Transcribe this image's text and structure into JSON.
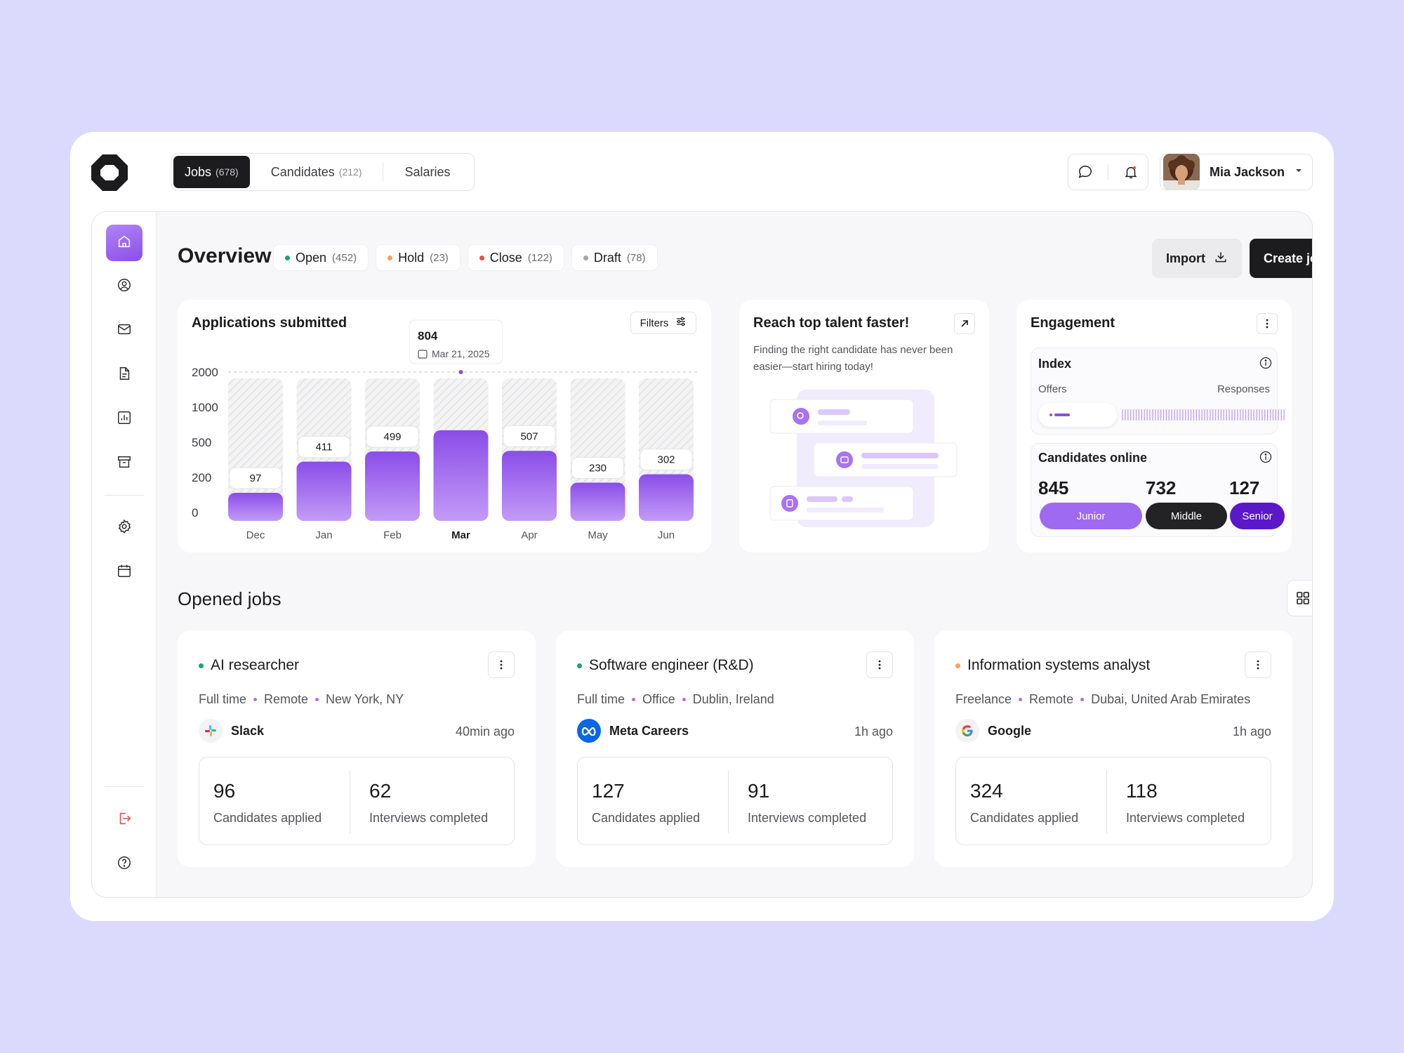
{
  "header": {
    "tabs": [
      {
        "label": "Jobs",
        "count": "(678)"
      },
      {
        "label": "Candidates",
        "count": "(212)"
      },
      {
        "label": "Salaries",
        "count": ""
      }
    ],
    "user_name": "Mia Jackson"
  },
  "overview": {
    "title": "Overview",
    "statuses": [
      {
        "label": "Open",
        "count": "(452)",
        "color": "#1aa567"
      },
      {
        "label": "Hold",
        "count": "(23)",
        "color": "#f5a25d"
      },
      {
        "label": "Close",
        "count": "(122)",
        "color": "#ef4b45"
      },
      {
        "label": "Draft",
        "count": "(78)",
        "color": "#a4a4aa"
      }
    ],
    "import_label": "Import",
    "create_label": "Create job"
  },
  "chart_data": {
    "type": "bar",
    "title": "Applications submitted",
    "filters_label": "Filters",
    "categories": [
      "Dec",
      "Jan",
      "Feb",
      "Mar",
      "Apr",
      "May",
      "Jun"
    ],
    "values": [
      97,
      411,
      499,
      804,
      507,
      230,
      302
    ],
    "y_ticks": [
      "2000",
      "1000",
      "500",
      "200",
      "0"
    ],
    "highlight_index": 3,
    "tooltip": {
      "value": "804",
      "date": "Mar 21, 2025"
    },
    "colors": {
      "bar_top": "#8a4de8",
      "bar_bottom": "#c39bf7"
    }
  },
  "reach": {
    "title": "Reach top talent faster!",
    "description": "Finding the right candidate has never been easier—start hiring today!"
  },
  "engagement": {
    "title": "Engagement",
    "index": {
      "title": "Index",
      "left_label": "Offers",
      "right_label": "Responses"
    },
    "online": {
      "title": "Candidates online",
      "levels": [
        {
          "value": "845",
          "label": "Junior",
          "color": "#9e6af0"
        },
        {
          "value": "732",
          "label": "Middle",
          "color": "#232325"
        },
        {
          "value": "127",
          "label": "Senior",
          "color": "#5a18c9"
        }
      ]
    }
  },
  "jobs": {
    "title": "Opened jobs",
    "items": [
      {
        "title": "AI researcher",
        "dot": "#1aa567",
        "type": "Full time",
        "mode": "Remote",
        "location": "New York, NY",
        "company": "Slack",
        "time": "40min ago",
        "applied": "96",
        "applied_label": "Candidates applied",
        "interviews": "62",
        "interviews_label": "Interviews completed"
      },
      {
        "title": "Software engineer (R&D)",
        "dot": "#1aa567",
        "type": "Full time",
        "mode": "Office",
        "location": "Dublin, Ireland",
        "company": "Meta Careers",
        "time": "1h ago",
        "applied": "127",
        "applied_label": "Candidates applied",
        "interviews": "91",
        "interviews_label": "Interviews completed"
      },
      {
        "title": "Information systems analyst",
        "dot": "#f5a25d",
        "type": "Freelance",
        "mode": "Remote",
        "location": "Dubai, United Arab Emirates",
        "company": "Google",
        "time": "1h ago",
        "applied": "324",
        "applied_label": "Candidates applied",
        "interviews": "118",
        "interviews_label": "Interviews completed"
      }
    ]
  }
}
